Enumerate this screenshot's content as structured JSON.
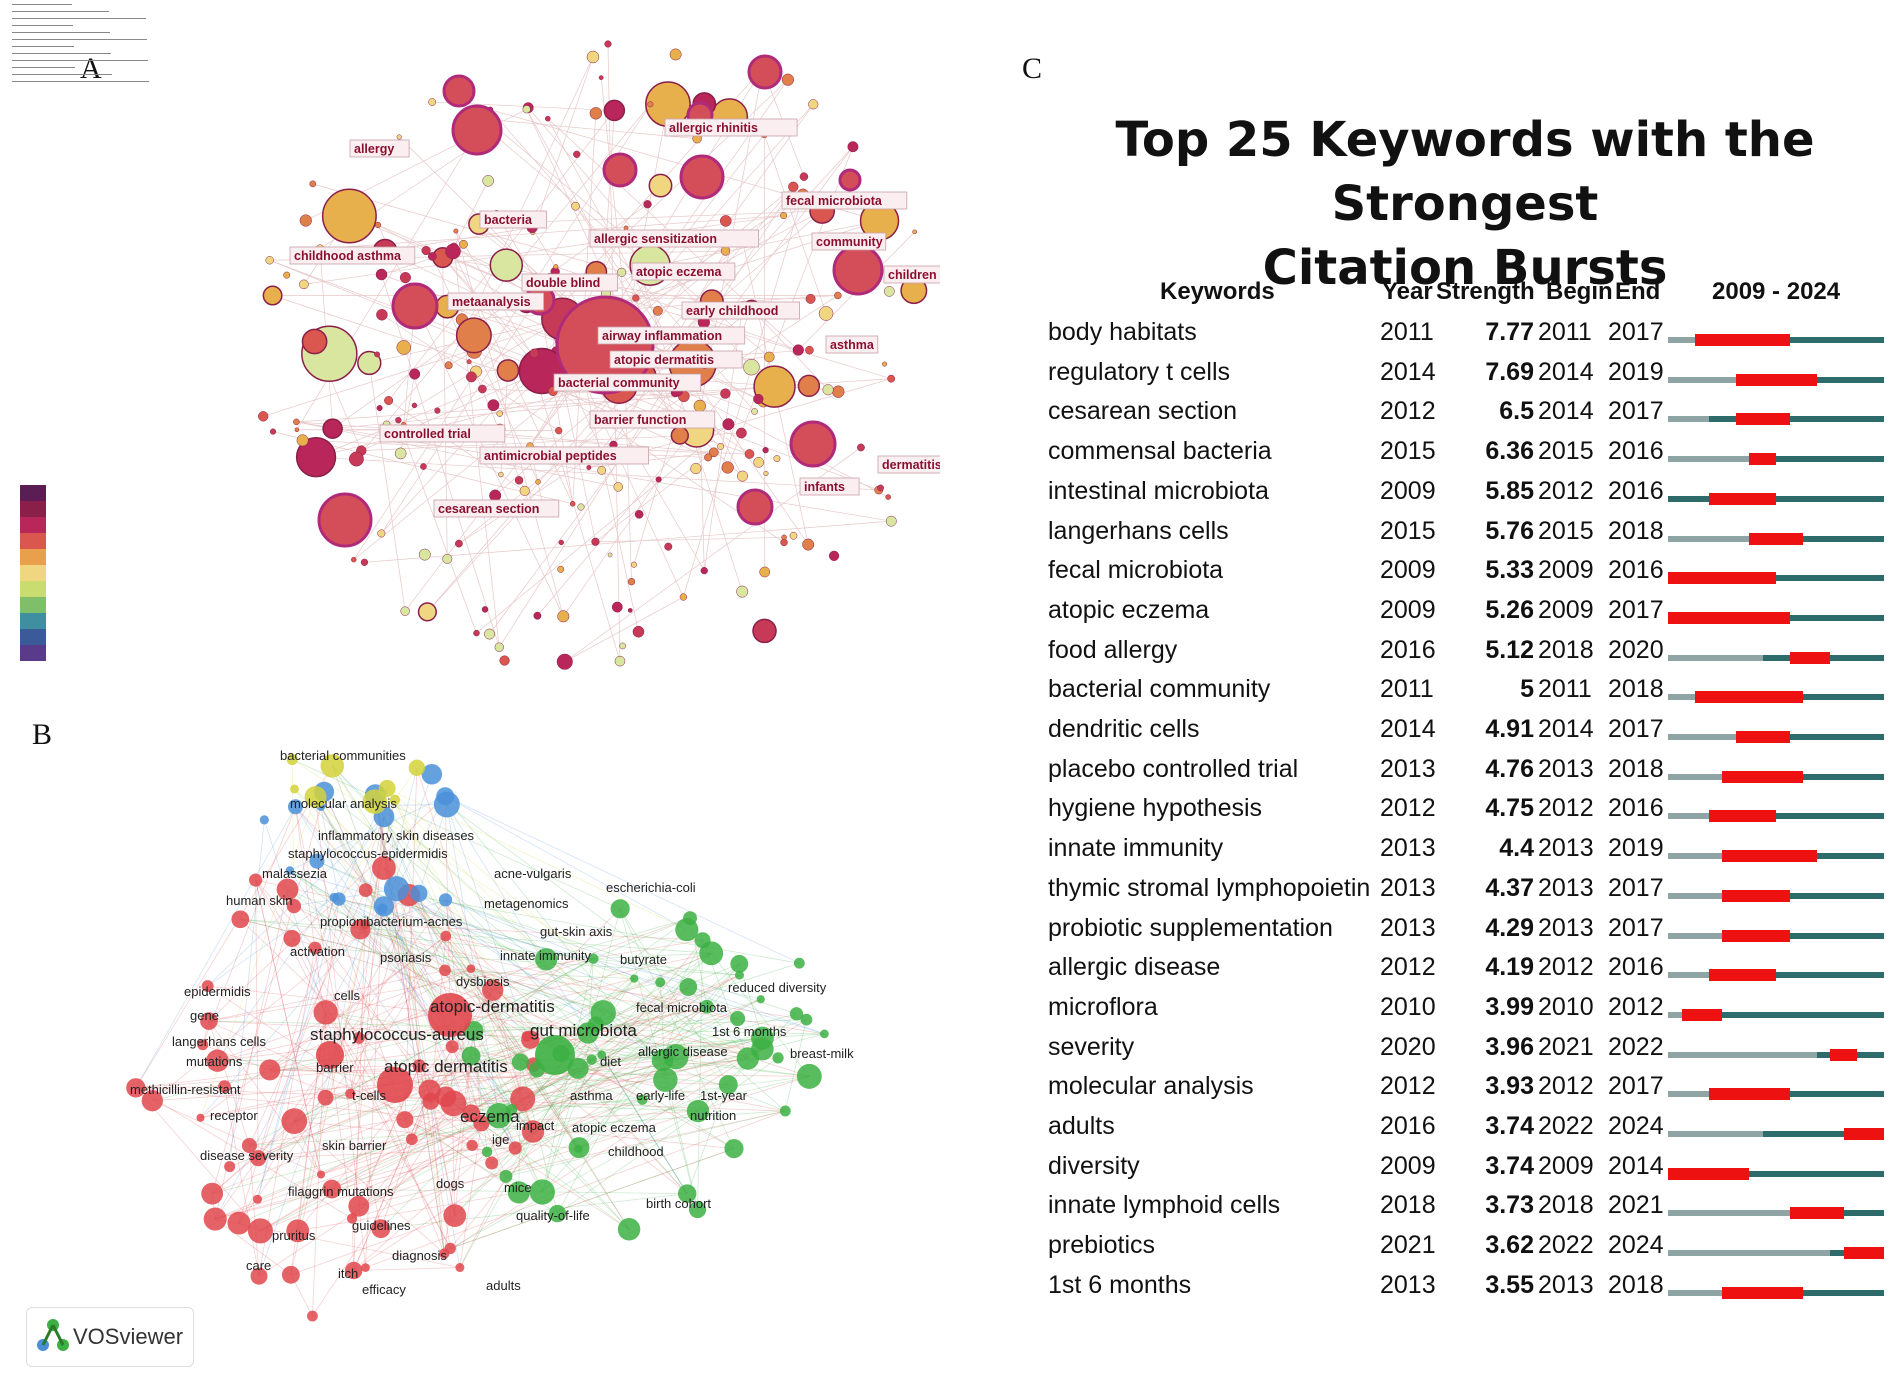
{
  "panels": {
    "a": "A",
    "b": "B",
    "c": "C"
  },
  "panel_a_header_lines": [
    "",
    "",
    "",
    "",
    "",
    "",
    "",
    "",
    "",
    "",
    "",
    ""
  ],
  "panel_a_labels": [
    "allergic rhinitis",
    "allergy",
    "fecal microbiota",
    "bacteria",
    "allergic sensitization",
    "community",
    "childhood asthma",
    "children",
    "double blind",
    "atopic eczema",
    "metaanalysis",
    "early childhood",
    "airway inflammation",
    "asthma",
    "atopic dermatitis",
    "bacterial community",
    "barrier function",
    "controlled trial",
    "antimicrobial peptides",
    "dermatitis",
    "infants",
    "cesarean section"
  ],
  "panel_b_labels": [
    "bacterial communities",
    "molecular analysis",
    "inflammatory skin diseases",
    "staphylococcus-epidermidis",
    "malassezia",
    "acne-vulgaris",
    "escherichia-coli",
    "human skin",
    "metagenomics",
    "propionibacterium-acnes",
    "gut-skin axis",
    "activation",
    "psoriasis",
    "innate immunity",
    "butyrate",
    "dysbiosis",
    "reduced diversity",
    "epidermidis",
    "cells",
    "atopic-dermatitis",
    "fecal microbiota",
    "gene",
    "staphylococcus-aureus",
    "gut microbiota",
    "1st 6 months",
    "langerhans cells",
    "allergic disease",
    "mutations",
    "barrier",
    "atopic dermatitis",
    "diet",
    "breast-milk",
    "methicillin-resistant",
    "t-cells",
    "asthma",
    "early-life",
    "1st-year",
    "receptor",
    "eczema",
    "impact",
    "atopic eczema",
    "nutrition",
    "skin barrier",
    "childhood",
    "disease severity",
    "ige",
    "dogs",
    "mice",
    "filaggrin mutations",
    "birth cohort",
    "guidelines",
    "quality-of-life",
    "pruritus",
    "diagnosis",
    "care",
    "itch",
    "efficacy",
    "adults"
  ],
  "vosviewer_logo": "VOSviewer",
  "burst_chart": {
    "title_line1": "Top 25 Keywords with the Strongest",
    "title_line2": "Citation Bursts",
    "headers": {
      "keywords": "Keywords",
      "year": "Year",
      "strength": "Strength",
      "begin": "Begin",
      "end": "End",
      "range": "2009 - 2024"
    }
  },
  "chart_data": {
    "type": "table",
    "title": "Top 25 Keywords with the Strongest Citation Bursts",
    "columns": [
      "Keywords",
      "Year",
      "Strength",
      "Begin",
      "End",
      "2009 - 2024"
    ],
    "range": [
      2009,
      2024
    ],
    "rows": [
      {
        "keyword": "body habitats",
        "year": 2011,
        "strength": "7.77",
        "begin": 2011,
        "end": 2017
      },
      {
        "keyword": "regulatory t cells",
        "year": 2014,
        "strength": "7.69",
        "begin": 2014,
        "end": 2019
      },
      {
        "keyword": "cesarean section",
        "year": 2012,
        "strength": "6.5",
        "begin": 2014,
        "end": 2017
      },
      {
        "keyword": "commensal bacteria",
        "year": 2015,
        "strength": "6.36",
        "begin": 2015,
        "end": 2016
      },
      {
        "keyword": "intestinal microbiota",
        "year": 2009,
        "strength": "5.85",
        "begin": 2012,
        "end": 2016
      },
      {
        "keyword": "langerhans cells",
        "year": 2015,
        "strength": "5.76",
        "begin": 2015,
        "end": 2018
      },
      {
        "keyword": "fecal microbiota",
        "year": 2009,
        "strength": "5.33",
        "begin": 2009,
        "end": 2016
      },
      {
        "keyword": "atopic eczema",
        "year": 2009,
        "strength": "5.26",
        "begin": 2009,
        "end": 2017
      },
      {
        "keyword": "food allergy",
        "year": 2016,
        "strength": "5.12",
        "begin": 2018,
        "end": 2020
      },
      {
        "keyword": "bacterial community",
        "year": 2011,
        "strength": "5",
        "begin": 2011,
        "end": 2018
      },
      {
        "keyword": "dendritic cells",
        "year": 2014,
        "strength": "4.91",
        "begin": 2014,
        "end": 2017
      },
      {
        "keyword": "placebo controlled trial",
        "year": 2013,
        "strength": "4.76",
        "begin": 2013,
        "end": 2018
      },
      {
        "keyword": "hygiene hypothesis",
        "year": 2012,
        "strength": "4.75",
        "begin": 2012,
        "end": 2016
      },
      {
        "keyword": "innate immunity",
        "year": 2013,
        "strength": "4.4",
        "begin": 2013,
        "end": 2019
      },
      {
        "keyword": "thymic stromal lymphopoietin",
        "year": 2013,
        "strength": "4.37",
        "begin": 2013,
        "end": 2017
      },
      {
        "keyword": "probiotic supplementation",
        "year": 2013,
        "strength": "4.29",
        "begin": 2013,
        "end": 2017
      },
      {
        "keyword": "allergic disease",
        "year": 2012,
        "strength": "4.19",
        "begin": 2012,
        "end": 2016
      },
      {
        "keyword": "microflora",
        "year": 2010,
        "strength": "3.99",
        "begin": 2010,
        "end": 2012
      },
      {
        "keyword": "severity",
        "year": 2020,
        "strength": "3.96",
        "begin": 2021,
        "end": 2022
      },
      {
        "keyword": "molecular analysis",
        "year": 2012,
        "strength": "3.93",
        "begin": 2012,
        "end": 2017
      },
      {
        "keyword": "adults",
        "year": 2016,
        "strength": "3.74",
        "begin": 2022,
        "end": 2024
      },
      {
        "keyword": "diversity",
        "year": 2009,
        "strength": "3.74",
        "begin": 2009,
        "end": 2014
      },
      {
        "keyword": "innate lymphoid cells",
        "year": 2018,
        "strength": "3.73",
        "begin": 2018,
        "end": 2021
      },
      {
        "keyword": "prebiotics",
        "year": 2021,
        "strength": "3.62",
        "begin": 2022,
        "end": 2024
      },
      {
        "keyword": "1st 6 months",
        "year": 2013,
        "strength": "3.55",
        "begin": 2013,
        "end": 2018
      }
    ]
  },
  "colors": {
    "burst": "#ee1111",
    "active": "#2e6b6b",
    "inactive": "#8fa4a4",
    "vos_red": "#e0474c",
    "vos_green": "#3cb043",
    "vos_blue": "#4a90d9",
    "vos_yellow": "#d4d23a",
    "citespace_node": "#b8265a"
  }
}
